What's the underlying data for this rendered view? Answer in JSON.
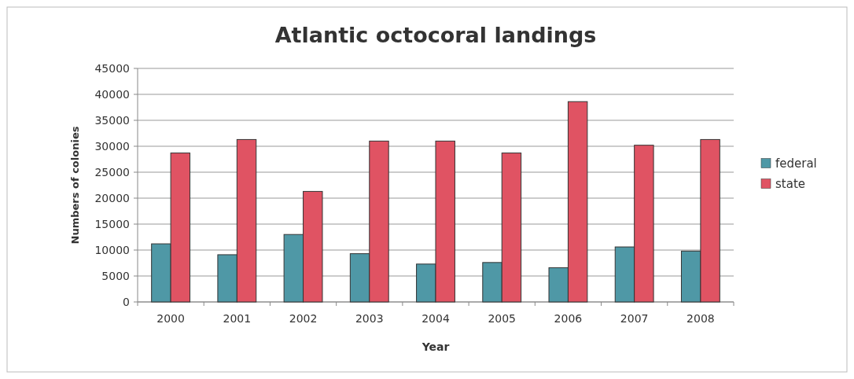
{
  "chart_data": {
    "type": "bar",
    "title": "Atlantic octocoral landings",
    "xlabel": "Year",
    "ylabel": "Numbers of colonies",
    "categories": [
      "2000",
      "2001",
      "2002",
      "2003",
      "2004",
      "2005",
      "2006",
      "2007",
      "2008"
    ],
    "series": [
      {
        "name": "federal",
        "color": "#4f98a6",
        "values": [
          11200,
          9100,
          13000,
          9300,
          7300,
          7600,
          6600,
          10600,
          9800
        ]
      },
      {
        "name": "state",
        "color": "#e05363",
        "values": [
          28700,
          31300,
          21300,
          31000,
          31000,
          28700,
          38600,
          30200,
          31300
        ]
      }
    ],
    "ylim": [
      0,
      45000
    ],
    "yticks": [
      0,
      5000,
      10000,
      15000,
      20000,
      25000,
      30000,
      35000,
      40000,
      45000
    ],
    "grid": "y",
    "legend": "right"
  }
}
